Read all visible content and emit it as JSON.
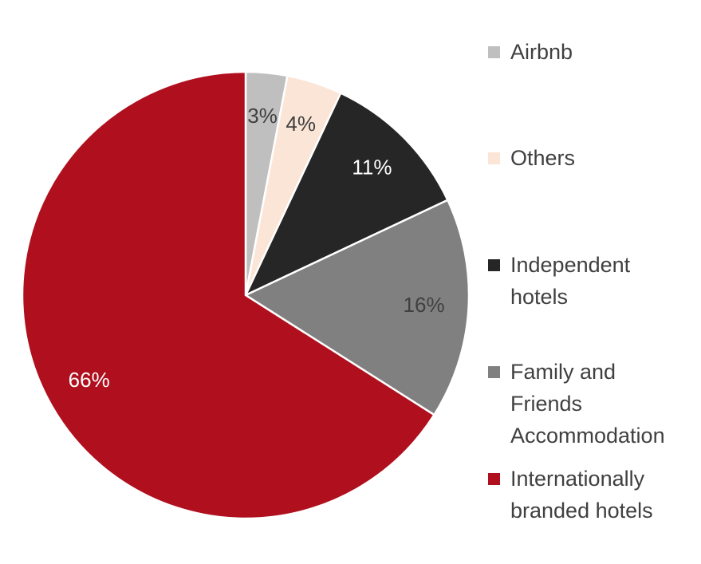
{
  "chart_data": {
    "type": "pie",
    "categories": [
      "Airbnb",
      "Others",
      "Independent hotels",
      "Family and Friends Accommodation",
      "Internationally branded hotels"
    ],
    "values": [
      3,
      4,
      11,
      16,
      66
    ],
    "value_labels": [
      "3%",
      "4%",
      "11%",
      "16%",
      "66%"
    ],
    "colors": [
      "#bfbfbf",
      "#fbe5d6",
      "#262626",
      "#808080",
      "#b0101e"
    ],
    "legend": "right"
  }
}
